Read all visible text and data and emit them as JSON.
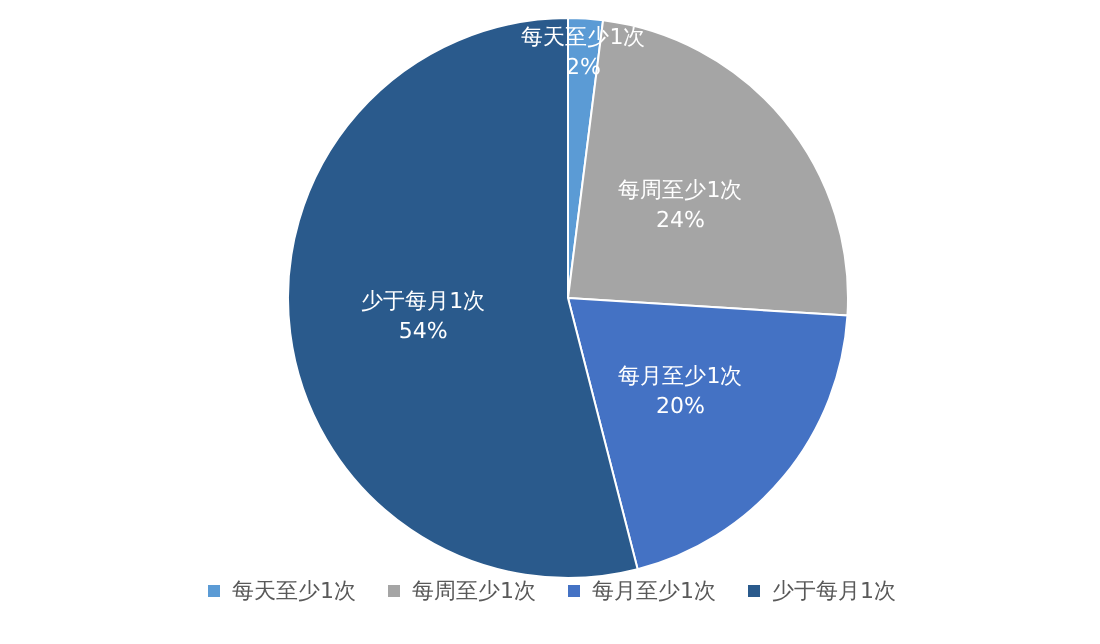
{
  "chart_data": {
    "type": "pie",
    "categories": [
      "每天至少1次",
      "每周至少1次",
      "每月至少1次",
      "少于每月1次"
    ],
    "values": [
      2,
      24,
      20,
      54
    ],
    "colors": [
      "#5b9bd5",
      "#a5a5a5",
      "#4472c4",
      "#2a5a8c"
    ],
    "value_labels": [
      "2%",
      "24%",
      "20%",
      "54%"
    ],
    "legend": "bottom"
  }
}
